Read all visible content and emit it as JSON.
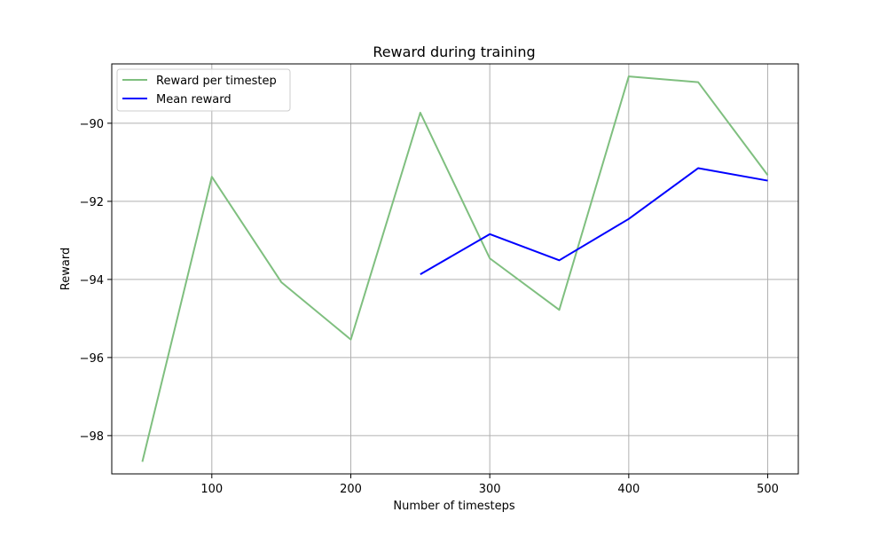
{
  "chart_data": {
    "type": "line",
    "title": "Reward during training",
    "xlabel": "Number of timesteps",
    "ylabel": "Reward",
    "xlim": [
      28,
      522
    ],
    "ylim": [
      -98.98,
      -88.48
    ],
    "x_ticks": [
      100,
      200,
      300,
      400,
      500
    ],
    "y_ticks": [
      -98,
      -96,
      -94,
      -92,
      -90
    ],
    "x_tick_labels": [
      "100",
      "200",
      "300",
      "400",
      "500"
    ],
    "y_tick_labels": [
      "−98",
      "−96",
      "−94",
      "−92",
      "−90"
    ],
    "grid": true,
    "legend_position": "top-left",
    "series": [
      {
        "name": "Reward per timestep",
        "color": "#7fbf7f",
        "x": [
          50,
          100,
          150,
          200,
          250,
          300,
          350,
          400,
          450,
          500
        ],
        "values": [
          -98.67,
          -91.37,
          -94.07,
          -95.54,
          -89.73,
          -93.46,
          -94.78,
          -88.8,
          -88.95,
          -91.33
        ]
      },
      {
        "name": "Mean reward",
        "color": "#0000ff",
        "x": [
          250,
          300,
          350,
          400,
          450,
          500
        ],
        "values": [
          -93.87,
          -92.84,
          -93.51,
          -92.45,
          -91.15,
          -91.47
        ]
      }
    ]
  }
}
